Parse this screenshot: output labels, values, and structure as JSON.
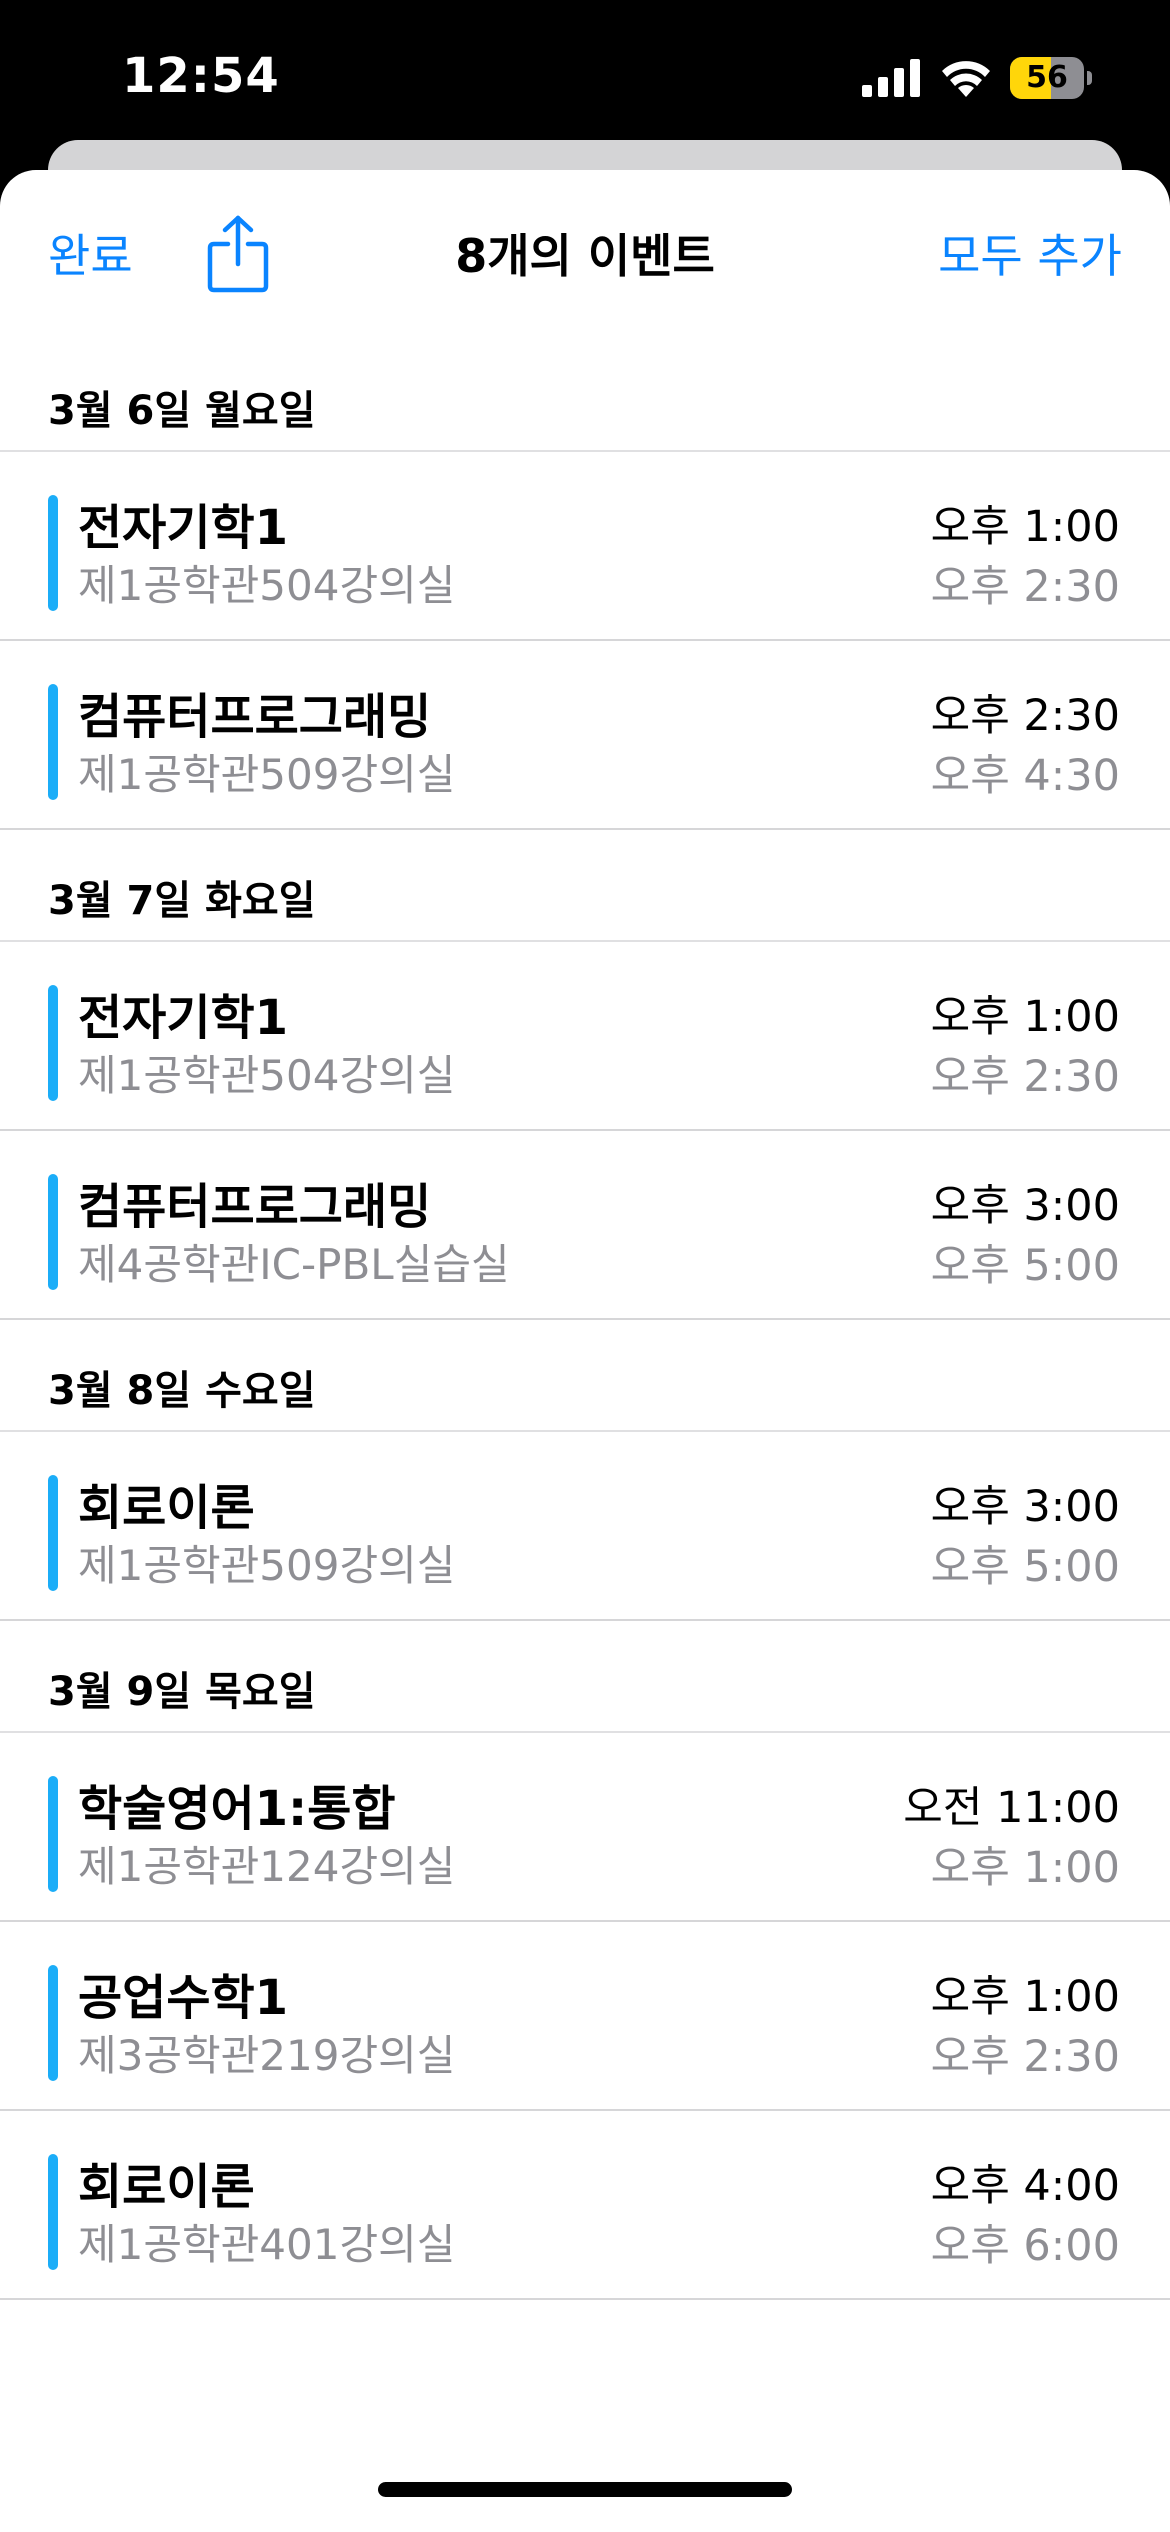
{
  "status_bar": {
    "time": "12:54",
    "battery_level": "56",
    "battery_fraction": 0.56,
    "icons": [
      "cellular-signal-icon",
      "wifi-icon",
      "battery-icon"
    ]
  },
  "nav": {
    "done_label": "완료",
    "share_icon": "share-icon",
    "title": "8개의 이벤트",
    "add_all_label": "모두 추가"
  },
  "colors": {
    "accent": "#0a84ff",
    "calendar_bar": "#1badf8",
    "secondary_text": "#8e8e93",
    "battery_fill": "#ffd60a"
  },
  "days": [
    {
      "label": "3월 6일 월요일",
      "events": [
        {
          "title": "전자기학1",
          "location": "제1공학관504강의실",
          "start": "오후 1:00",
          "end": "오후 2:30"
        },
        {
          "title": "컴퓨터프로그래밍",
          "location": "제1공학관509강의실",
          "start": "오후 2:30",
          "end": "오후 4:30"
        }
      ]
    },
    {
      "label": "3월 7일 화요일",
      "events": [
        {
          "title": "전자기학1",
          "location": "제1공학관504강의실",
          "start": "오후 1:00",
          "end": "오후 2:30"
        },
        {
          "title": "컴퓨터프로그래밍",
          "location": "제4공학관IC-PBL실습실",
          "start": "오후 3:00",
          "end": "오후 5:00"
        }
      ]
    },
    {
      "label": "3월 8일 수요일",
      "events": [
        {
          "title": "회로이론",
          "location": "제1공학관509강의실",
          "start": "오후 3:00",
          "end": "오후 5:00"
        }
      ]
    },
    {
      "label": "3월 9일 목요일",
      "events": [
        {
          "title": "학술영어1:통합",
          "location": "제1공학관124강의실",
          "start": "오전 11:00",
          "end": "오후 1:00"
        },
        {
          "title": "공업수학1",
          "location": "제3공학관219강의실",
          "start": "오후 1:00",
          "end": "오후 2:30"
        },
        {
          "title": "회로이론",
          "location": "제1공학관401강의실",
          "start": "오후 4:00",
          "end": "오후 6:00"
        }
      ]
    }
  ]
}
